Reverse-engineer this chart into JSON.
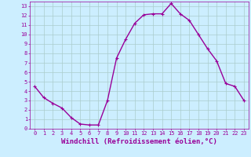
{
  "x": [
    0,
    1,
    2,
    3,
    4,
    5,
    6,
    7,
    8,
    9,
    10,
    11,
    12,
    13,
    14,
    15,
    16,
    17,
    18,
    19,
    20,
    21,
    22,
    23
  ],
  "y": [
    4.5,
    3.3,
    2.7,
    2.2,
    1.2,
    0.5,
    0.4,
    0.4,
    3.0,
    7.5,
    9.5,
    11.2,
    12.1,
    12.2,
    12.2,
    13.3,
    12.2,
    11.5,
    10.0,
    8.5,
    7.2,
    4.8,
    4.5,
    3.0
  ],
  "line_color": "#990099",
  "marker": "+",
  "marker_size": 3,
  "marker_linewidth": 0.8,
  "bg_color": "#cceeff",
  "grid_color": "#aacccc",
  "xlabel": "Windchill (Refroidissement éolien,°C)",
  "xlabel_color": "#990099",
  "tick_color": "#990099",
  "xlim": [
    -0.5,
    23.5
  ],
  "ylim": [
    0,
    13.5
  ],
  "xticks": [
    0,
    1,
    2,
    3,
    4,
    5,
    6,
    7,
    8,
    9,
    10,
    11,
    12,
    13,
    14,
    15,
    16,
    17,
    18,
    19,
    20,
    21,
    22,
    23
  ],
  "yticks": [
    0,
    1,
    2,
    3,
    4,
    5,
    6,
    7,
    8,
    9,
    10,
    11,
    12,
    13
  ],
  "tick_fontsize": 5.0,
  "xlabel_fontsize": 6.5,
  "line_width": 1.0
}
